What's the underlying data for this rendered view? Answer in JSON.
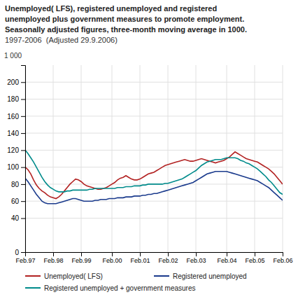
{
  "chart_data": {
    "type": "line",
    "title": [
      "Unemployed( LFS), registered unemployed and registered",
      "unemployed plus government measures to promote employment.",
      "Seasonally adjusted figures, three-month moving average in 1000."
    ],
    "subtitle": "1997-2006  (Adjusted 29.9.2006)",
    "ylabel": "1 000",
    "categories": [
      "Feb.97",
      null,
      null,
      null,
      null,
      null,
      null,
      null,
      null,
      null,
      "Feb.98",
      null,
      null,
      null,
      null,
      null,
      null,
      null,
      null,
      null,
      "Feb.99",
      null,
      null,
      null,
      null,
      null,
      null,
      null,
      null,
      null,
      null,
      "Feb.00",
      null,
      null,
      null,
      null,
      null,
      null,
      null,
      null,
      null,
      "Feb.01",
      null,
      null,
      null,
      null,
      null,
      null,
      null,
      null,
      null,
      "Feb.02",
      null,
      null,
      null,
      null,
      null,
      null,
      null,
      null,
      null,
      "Feb.03",
      null,
      null,
      null,
      null,
      null,
      null,
      null,
      null,
      null,
      null,
      "Feb.04",
      null,
      null,
      null,
      null,
      null,
      null,
      null,
      null,
      null,
      "Feb.05",
      null,
      null,
      null,
      null,
      null,
      null,
      null,
      null,
      null,
      "Feb.06"
    ],
    "series": [
      {
        "name": "Unemployed( LFS)",
        "color": "#b22222",
        "values": [
          100,
          97,
          92,
          85,
          79,
          75,
          72,
          70,
          67,
          65,
          64,
          63,
          65,
          68,
          72,
          76,
          80,
          83,
          86,
          85,
          83,
          80,
          78,
          77,
          76,
          75,
          74,
          74,
          75,
          76,
          78,
          80,
          82,
          85,
          87,
          88,
          90,
          88,
          86,
          85,
          85,
          86,
          88,
          90,
          92,
          93,
          94,
          96,
          98,
          100,
          102,
          103,
          104,
          105,
          106,
          107,
          108,
          109,
          108,
          107,
          107,
          108,
          109,
          110,
          109,
          108,
          107,
          106,
          105,
          106,
          107,
          108,
          110,
          112,
          115,
          118,
          116,
          114,
          112,
          110,
          109,
          108,
          107,
          106,
          104,
          102,
          100,
          98,
          95,
          92,
          88,
          84,
          80
        ]
      },
      {
        "name": "Registered unemployed",
        "color": "#1a3a8c",
        "values": [
          87,
          83,
          78,
          73,
          68,
          64,
          60,
          58,
          57,
          57,
          57,
          57,
          58,
          59,
          60,
          61,
          62,
          63,
          63,
          62,
          61,
          60,
          60,
          60,
          60,
          61,
          61,
          62,
          62,
          62,
          63,
          63,
          63,
          64,
          64,
          64,
          65,
          65,
          65,
          66,
          66,
          66,
          67,
          67,
          68,
          68,
          69,
          69,
          70,
          71,
          72,
          73,
          74,
          75,
          76,
          77,
          78,
          79,
          80,
          81,
          82,
          84,
          86,
          88,
          90,
          92,
          93,
          94,
          95,
          95,
          95,
          95,
          95,
          94,
          93,
          92,
          91,
          90,
          89,
          88,
          87,
          86,
          85,
          84,
          82,
          80,
          78,
          76,
          73,
          70,
          67,
          64,
          61
        ]
      },
      {
        "name": "Registered unemployed + government measures",
        "color": "#008b8b",
        "values": [
          120,
          116,
          111,
          106,
          100,
          94,
          88,
          83,
          79,
          76,
          74,
          72,
          71,
          71,
          71,
          72,
          72,
          73,
          73,
          73,
          73,
          73,
          73,
          74,
          74,
          75,
          75,
          75,
          75,
          75,
          75,
          75,
          75,
          76,
          76,
          76,
          77,
          77,
          77,
          78,
          78,
          78,
          79,
          79,
          80,
          80,
          80,
          80,
          80,
          80,
          81,
          81,
          82,
          83,
          84,
          85,
          86,
          88,
          90,
          92,
          94,
          96,
          99,
          102,
          104,
          106,
          107,
          108,
          109,
          109,
          109,
          110,
          111,
          111,
          111,
          111,
          110,
          108,
          107,
          105,
          104,
          102,
          100,
          98,
          95,
          92,
          89,
          85,
          82,
          78,
          74,
          70,
          68
        ]
      }
    ],
    "ylim": [
      0,
      220
    ],
    "yticks": [
      0,
      40,
      60,
      80,
      100,
      120,
      140,
      160,
      180,
      200
    ],
    "grid": true,
    "legend": "bottom"
  }
}
